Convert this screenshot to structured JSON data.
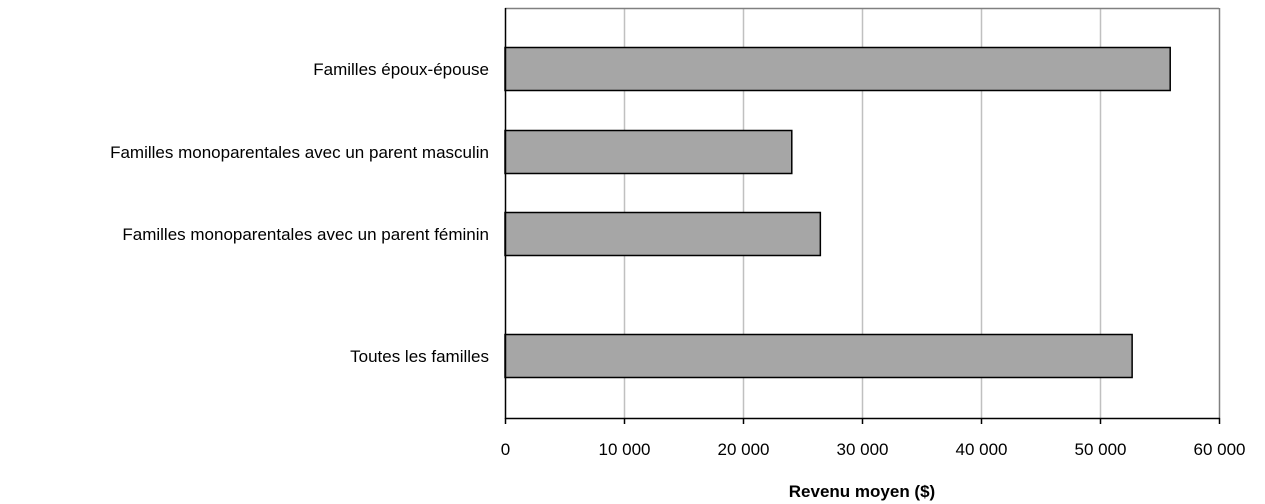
{
  "chart_data": {
    "type": "bar",
    "orientation": "horizontal",
    "title": "",
    "xlabel": "Revenu moyen ($)",
    "ylabel": "",
    "categories": [
      "Familles époux-épouse",
      "Familles monoparentales avec un parent masculin",
      "Familles monoparentales avec un parent féminin",
      "Toutes les familles"
    ],
    "values": [
      55900,
      24100,
      26500,
      52700
    ],
    "xlim": [
      0,
      60000
    ],
    "ticks": [
      0,
      10000,
      20000,
      30000,
      40000,
      50000,
      60000
    ],
    "tick_labels": [
      "0",
      "10 000",
      "20 000",
      "30 000",
      "40 000",
      "50 000",
      "60 000"
    ],
    "grid": "vertical",
    "legend": "none",
    "colors": {
      "bar_fill": "#a6a6a6",
      "bar_stroke": "#000000",
      "grid": "#c0c0c0",
      "frame": "#808080",
      "axis": "#000000"
    }
  }
}
